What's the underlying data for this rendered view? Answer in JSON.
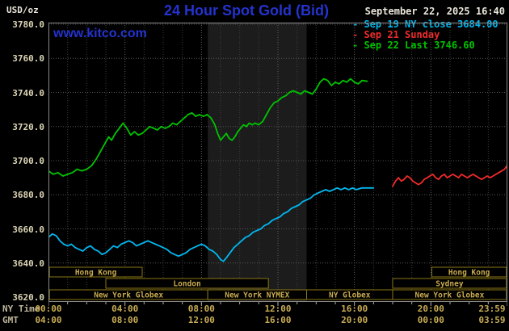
{
  "header": {
    "units_label": "USD/oz",
    "title": "24 Hour Spot Gold (Bid)",
    "datetime": "September 22, 2025 16:40",
    "watermark": "www.kitco.com"
  },
  "axes": {
    "y_ticks": [
      "3780.0",
      "3760.0",
      "3740.0",
      "3720.0",
      "3700.0",
      "3680.0",
      "3660.0",
      "3640.0",
      "3620.0"
    ],
    "time_axis_label": "NY Time",
    "gmt_axis_label": "GMT",
    "tick_hours": [
      0,
      4,
      8,
      12,
      16,
      20,
      23.98
    ],
    "ny_ticks": [
      "00:00",
      "04:00",
      "08:00",
      "12:00",
      "16:00",
      "20:00",
      "23:59"
    ],
    "gmt_ticks": [
      "04:00",
      "08:00",
      "12:00",
      "16:00",
      "20:00",
      "00:00",
      "03:59"
    ]
  },
  "sessions": {
    "border_color": "#8a7616",
    "label_color": "#c9ab4f",
    "rows": [
      {
        "boxes": [
          {
            "label": "Hong Kong",
            "start": 0.05,
            "end": 4.9
          },
          {
            "label": "Hong Kong",
            "start": 20.05,
            "end": 23.95
          }
        ]
      },
      {
        "boxes": [
          {
            "label": "London",
            "start": 3.0,
            "end": 11.5
          },
          {
            "label": "Sydney",
            "start": 18.0,
            "end": 23.95
          }
        ]
      },
      {
        "boxes": [
          {
            "label": "New York Globex",
            "start": 0.05,
            "end": 8.33
          },
          {
            "label": "New York NYMEX",
            "start": 8.33,
            "end": 13.5
          },
          {
            "label": "NY Globex",
            "start": 13.5,
            "end": 18.0
          },
          {
            "label": "New York Globex",
            "start": 18.0,
            "end": 23.95
          }
        ]
      }
    ]
  },
  "chart_data": {
    "type": "line",
    "title": "24 Hour Spot Gold (Bid)",
    "xlabel": "NY Time (hours)",
    "ylabel": "USD/oz",
    "x_range": [
      0,
      24
    ],
    "y_range": [
      3620,
      3780
    ],
    "y_tick_step": 20,
    "grid": true,
    "legend_position": "top-right",
    "bands": [
      {
        "name": "new-york-nymex-session",
        "start": 8.33,
        "end": 13.5,
        "color": "#1c1c1c"
      }
    ],
    "series": [
      {
        "id": "sep19-ny-close",
        "name": "Sep 19 NY close 3684.00",
        "color": "#00b8f0",
        "points": [
          [
            0,
            3655
          ],
          [
            0.2,
            3657
          ],
          [
            0.4,
            3656
          ],
          [
            0.6,
            3653
          ],
          [
            0.8,
            3651
          ],
          [
            1,
            3650
          ],
          [
            1.2,
            3651
          ],
          [
            1.4,
            3649
          ],
          [
            1.6,
            3648
          ],
          [
            1.8,
            3647
          ],
          [
            2,
            3649
          ],
          [
            2.2,
            3650
          ],
          [
            2.4,
            3648
          ],
          [
            2.6,
            3647
          ],
          [
            2.8,
            3645
          ],
          [
            3,
            3646
          ],
          [
            3.2,
            3648
          ],
          [
            3.4,
            3650
          ],
          [
            3.6,
            3649
          ],
          [
            3.8,
            3651
          ],
          [
            4,
            3652
          ],
          [
            4.2,
            3653
          ],
          [
            4.4,
            3652
          ],
          [
            4.6,
            3650
          ],
          [
            4.8,
            3651
          ],
          [
            5,
            3652
          ],
          [
            5.2,
            3653
          ],
          [
            5.4,
            3652
          ],
          [
            5.6,
            3651
          ],
          [
            5.8,
            3650
          ],
          [
            6,
            3649
          ],
          [
            6.2,
            3648
          ],
          [
            6.4,
            3646
          ],
          [
            6.6,
            3645
          ],
          [
            6.8,
            3644
          ],
          [
            7,
            3645
          ],
          [
            7.2,
            3646
          ],
          [
            7.4,
            3648
          ],
          [
            7.6,
            3649
          ],
          [
            7.8,
            3650
          ],
          [
            8,
            3651
          ],
          [
            8.2,
            3650
          ],
          [
            8.4,
            3648
          ],
          [
            8.6,
            3647
          ],
          [
            8.8,
            3645
          ],
          [
            9,
            3642
          ],
          [
            9.15,
            3641
          ],
          [
            9.3,
            3643
          ],
          [
            9.5,
            3646
          ],
          [
            9.7,
            3649
          ],
          [
            9.9,
            3651
          ],
          [
            10.1,
            3653
          ],
          [
            10.3,
            3655
          ],
          [
            10.5,
            3656
          ],
          [
            10.7,
            3658
          ],
          [
            10.9,
            3659
          ],
          [
            11.1,
            3660
          ],
          [
            11.3,
            3662
          ],
          [
            11.5,
            3663
          ],
          [
            11.7,
            3665
          ],
          [
            11.9,
            3666
          ],
          [
            12.1,
            3667
          ],
          [
            12.3,
            3669
          ],
          [
            12.5,
            3670
          ],
          [
            12.7,
            3672
          ],
          [
            12.9,
            3673
          ],
          [
            13.1,
            3674
          ],
          [
            13.3,
            3676
          ],
          [
            13.5,
            3677
          ],
          [
            13.7,
            3678
          ],
          [
            13.9,
            3680
          ],
          [
            14.1,
            3681
          ],
          [
            14.3,
            3682
          ],
          [
            14.5,
            3683
          ],
          [
            14.7,
            3682
          ],
          [
            14.9,
            3683
          ],
          [
            15.1,
            3684
          ],
          [
            15.3,
            3683
          ],
          [
            15.5,
            3684
          ],
          [
            15.7,
            3683
          ],
          [
            15.9,
            3684
          ],
          [
            16.1,
            3683
          ],
          [
            16.4,
            3684
          ],
          [
            16.7,
            3684
          ],
          [
            17,
            3684
          ]
        ]
      },
      {
        "id": "sep21-sunday",
        "name": "Sep 21 Sunday",
        "color": "#f22b2b",
        "points": [
          [
            18,
            3685
          ],
          [
            18.15,
            3688
          ],
          [
            18.3,
            3690
          ],
          [
            18.45,
            3688
          ],
          [
            18.6,
            3689
          ],
          [
            18.75,
            3691
          ],
          [
            18.9,
            3690
          ],
          [
            19.05,
            3688
          ],
          [
            19.2,
            3687
          ],
          [
            19.35,
            3686
          ],
          [
            19.5,
            3687
          ],
          [
            19.65,
            3689
          ],
          [
            19.8,
            3690
          ],
          [
            19.95,
            3691
          ],
          [
            20.1,
            3692
          ],
          [
            20.25,
            3690
          ],
          [
            20.4,
            3689
          ],
          [
            20.55,
            3691
          ],
          [
            20.7,
            3692
          ],
          [
            20.85,
            3690
          ],
          [
            21,
            3691
          ],
          [
            21.15,
            3692
          ],
          [
            21.3,
            3691
          ],
          [
            21.45,
            3690
          ],
          [
            21.6,
            3692
          ],
          [
            21.75,
            3691
          ],
          [
            21.9,
            3690
          ],
          [
            22.05,
            3691
          ],
          [
            22.2,
            3692
          ],
          [
            22.35,
            3691
          ],
          [
            22.5,
            3690
          ],
          [
            22.65,
            3689
          ],
          [
            22.8,
            3690
          ],
          [
            22.95,
            3691
          ],
          [
            23.1,
            3690
          ],
          [
            23.25,
            3691
          ],
          [
            23.4,
            3692
          ],
          [
            23.55,
            3693
          ],
          [
            23.7,
            3694
          ],
          [
            23.85,
            3695
          ],
          [
            23.98,
            3697
          ]
        ]
      },
      {
        "id": "sep22-last",
        "name": "Sep 22 Last 3746.60",
        "color": "#00c400",
        "points": [
          [
            0,
            3694
          ],
          [
            0.25,
            3692
          ],
          [
            0.5,
            3693
          ],
          [
            0.75,
            3691
          ],
          [
            1,
            3692
          ],
          [
            1.25,
            3693
          ],
          [
            1.5,
            3695
          ],
          [
            1.75,
            3694
          ],
          [
            2,
            3695
          ],
          [
            2.25,
            3697
          ],
          [
            2.5,
            3701
          ],
          [
            2.75,
            3706
          ],
          [
            3,
            3711
          ],
          [
            3.15,
            3714
          ],
          [
            3.3,
            3712
          ],
          [
            3.5,
            3716
          ],
          [
            3.7,
            3719
          ],
          [
            3.9,
            3722
          ],
          [
            4.1,
            3719
          ],
          [
            4.3,
            3715
          ],
          [
            4.5,
            3717
          ],
          [
            4.7,
            3715
          ],
          [
            4.9,
            3716
          ],
          [
            5.1,
            3718
          ],
          [
            5.3,
            3720
          ],
          [
            5.5,
            3719
          ],
          [
            5.7,
            3718
          ],
          [
            5.9,
            3720
          ],
          [
            6.1,
            3719
          ],
          [
            6.3,
            3720
          ],
          [
            6.5,
            3722
          ],
          [
            6.7,
            3721
          ],
          [
            6.9,
            3723
          ],
          [
            7.1,
            3725
          ],
          [
            7.3,
            3727
          ],
          [
            7.5,
            3728
          ],
          [
            7.7,
            3726
          ],
          [
            7.9,
            3727
          ],
          [
            8.1,
            3726
          ],
          [
            8.3,
            3727
          ],
          [
            8.5,
            3725
          ],
          [
            8.7,
            3721
          ],
          [
            8.85,
            3716
          ],
          [
            9,
            3712
          ],
          [
            9.15,
            3714
          ],
          [
            9.3,
            3716
          ],
          [
            9.45,
            3713
          ],
          [
            9.6,
            3712
          ],
          [
            9.75,
            3714
          ],
          [
            9.9,
            3717
          ],
          [
            10.05,
            3719
          ],
          [
            10.2,
            3721
          ],
          [
            10.35,
            3720
          ],
          [
            10.5,
            3722
          ],
          [
            10.65,
            3721
          ],
          [
            10.8,
            3722
          ],
          [
            11,
            3721
          ],
          [
            11.2,
            3723
          ],
          [
            11.4,
            3727
          ],
          [
            11.6,
            3731
          ],
          [
            11.8,
            3734
          ],
          [
            12,
            3735
          ],
          [
            12.2,
            3737
          ],
          [
            12.4,
            3738
          ],
          [
            12.6,
            3740
          ],
          [
            12.8,
            3741
          ],
          [
            13,
            3740
          ],
          [
            13.2,
            3739
          ],
          [
            13.4,
            3741
          ],
          [
            13.6,
            3740
          ],
          [
            13.8,
            3739
          ],
          [
            14,
            3742
          ],
          [
            14.2,
            3746
          ],
          [
            14.4,
            3748
          ],
          [
            14.6,
            3747
          ],
          [
            14.8,
            3744
          ],
          [
            15,
            3746
          ],
          [
            15.2,
            3745
          ],
          [
            15.4,
            3747
          ],
          [
            15.6,
            3746
          ],
          [
            15.8,
            3748
          ],
          [
            16,
            3746
          ],
          [
            16.2,
            3745
          ],
          [
            16.4,
            3747
          ],
          [
            16.67,
            3746.6
          ]
        ]
      }
    ]
  }
}
